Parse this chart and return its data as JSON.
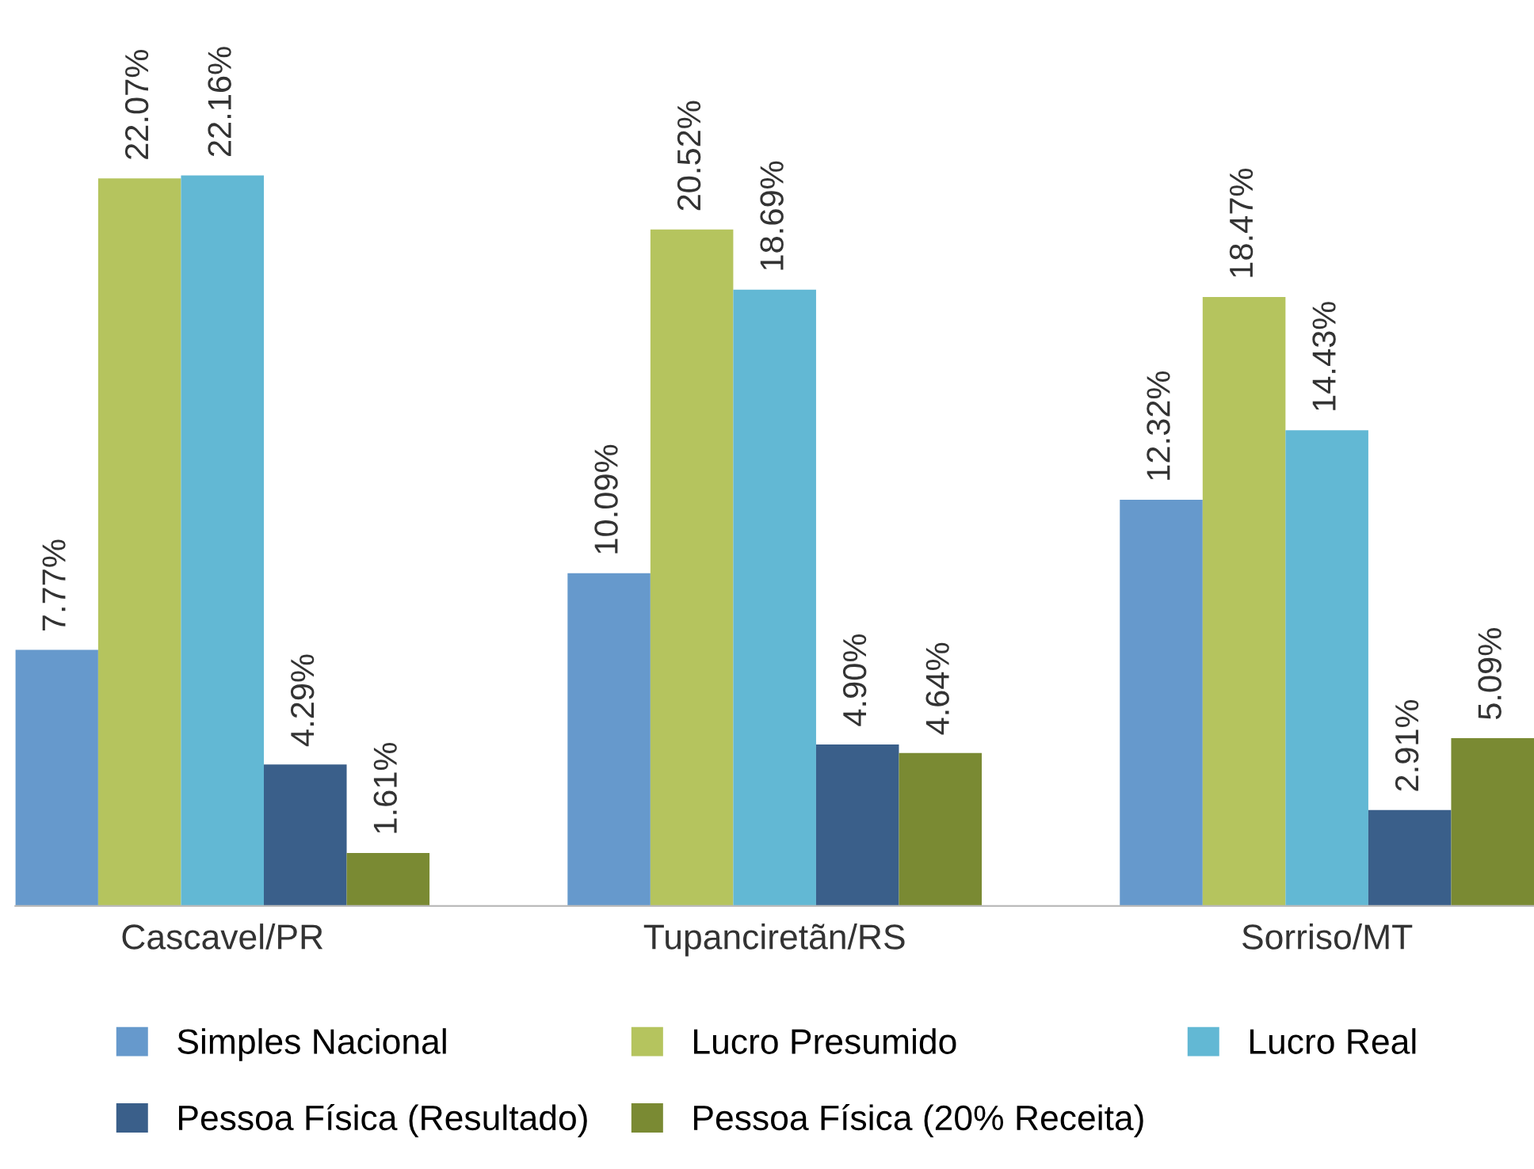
{
  "chart_data": {
    "type": "bar",
    "categories": [
      "Cascavel/PR",
      "Tupanciretãn/RS",
      "Sorriso/MT"
    ],
    "series": [
      {
        "name": "Simples Nacional",
        "color": "#6699cc",
        "values": [
          7.77,
          10.09,
          12.32
        ],
        "value_labels": [
          "7.77%",
          "10.09%",
          "12.32%"
        ]
      },
      {
        "name": "Lucro Presumido",
        "color": "#b5c45e",
        "values": [
          22.07,
          20.52,
          18.47
        ],
        "value_labels": [
          "22.07%",
          "20.52%",
          "18.47%"
        ]
      },
      {
        "name": "Lucro Real",
        "color": "#62b8d4",
        "values": [
          22.16,
          18.69,
          14.43
        ],
        "value_labels": [
          "22.16%",
          "18.69%",
          "14.43%"
        ]
      },
      {
        "name": "Pessoa Física (Resultado)",
        "color": "#3a5f8a",
        "values": [
          4.29,
          4.9,
          2.91
        ],
        "value_labels": [
          "4.29%",
          "4.90%",
          "2.91%"
        ]
      },
      {
        "name": "Pessoa Física (20% Receita)",
        "color": "#7a8a33",
        "values": [
          1.61,
          4.64,
          5.09
        ],
        "value_labels": [
          "1.61%",
          "4.64%",
          "5.09%"
        ]
      }
    ],
    "legend": "bottom",
    "grid": false
  }
}
